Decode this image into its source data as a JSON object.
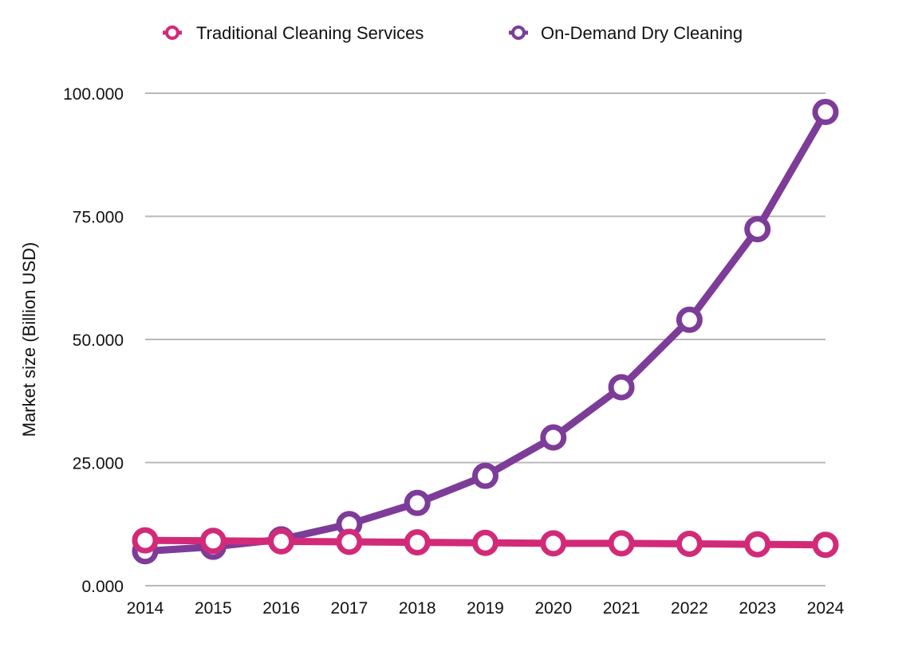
{
  "chart_data": {
    "type": "line",
    "title": "",
    "xlabel": "",
    "ylabel": "Market size (Billion USD)",
    "x": [
      "2014",
      "2015",
      "2016",
      "2017",
      "2018",
      "2019",
      "2020",
      "2021",
      "2022",
      "2023",
      "2024"
    ],
    "ylim": [
      0,
      100
    ],
    "yticks": [
      {
        "value": 0,
        "label": "0.000"
      },
      {
        "value": 25,
        "label": "25.000"
      },
      {
        "value": 50,
        "label": "50.000"
      },
      {
        "value": 75,
        "label": "75.000"
      },
      {
        "value": 100,
        "label": "100.000"
      }
    ],
    "grid": true,
    "legend_position": "top-center",
    "series": [
      {
        "name": "Traditional Cleaning Services",
        "color": "#d22a78",
        "values": [
          9.2,
          9.1,
          9.0,
          8.9,
          8.8,
          8.7,
          8.6,
          8.6,
          8.5,
          8.4,
          8.3
        ]
      },
      {
        "name": "On-Demand Dry Cleaning",
        "color": "#7d3c98",
        "values": [
          7.0,
          7.9,
          9.4,
          12.5,
          16.8,
          22.3,
          30.1,
          40.3,
          54.0,
          72.4,
          96.2
        ]
      }
    ]
  }
}
